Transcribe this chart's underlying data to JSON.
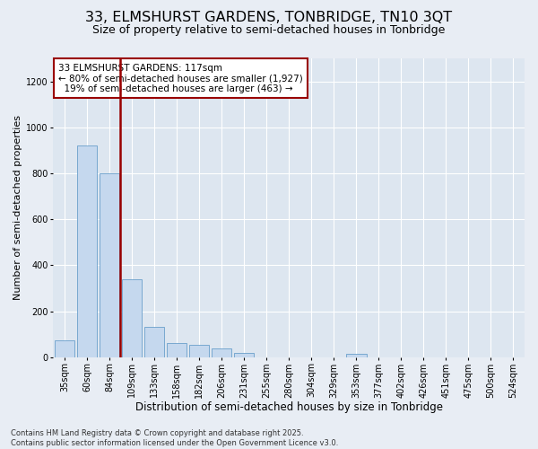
{
  "title": "33, ELMSHURST GARDENS, TONBRIDGE, TN10 3QT",
  "subtitle": "Size of property relative to semi-detached houses in Tonbridge",
  "xlabel": "Distribution of semi-detached houses by size in Tonbridge",
  "ylabel": "Number of semi-detached properties",
  "categories": [
    "35sqm",
    "60sqm",
    "84sqm",
    "109sqm",
    "133sqm",
    "158sqm",
    "182sqm",
    "206sqm",
    "231sqm",
    "255sqm",
    "280sqm",
    "304sqm",
    "329sqm",
    "353sqm",
    "377sqm",
    "402sqm",
    "426sqm",
    "451sqm",
    "475sqm",
    "500sqm",
    "524sqm"
  ],
  "values": [
    75,
    920,
    800,
    340,
    130,
    60,
    55,
    40,
    20,
    0,
    0,
    0,
    0,
    15,
    0,
    0,
    0,
    0,
    0,
    0,
    0
  ],
  "bar_color": "#c5d8ee",
  "bar_edge_color": "#6a9fcb",
  "vline_x_index": 2,
  "vline_color": "#990000",
  "annotation_text": "33 ELMSHURST GARDENS: 117sqm\n← 80% of semi-detached houses are smaller (1,927)\n  19% of semi-detached houses are larger (463) →",
  "annotation_box_color": "#ffffff",
  "annotation_box_edge_color": "#990000",
  "ylim": [
    0,
    1300
  ],
  "yticks": [
    0,
    200,
    400,
    600,
    800,
    1000,
    1200
  ],
  "bg_color": "#e8edf4",
  "plot_bg_color": "#dde6f0",
  "footer": "Contains HM Land Registry data © Crown copyright and database right 2025.\nContains public sector information licensed under the Open Government Licence v3.0.",
  "title_fontsize": 11.5,
  "subtitle_fontsize": 9,
  "xlabel_fontsize": 8.5,
  "ylabel_fontsize": 8,
  "tick_fontsize": 7,
  "annotation_fontsize": 7.5,
  "footer_fontsize": 6
}
